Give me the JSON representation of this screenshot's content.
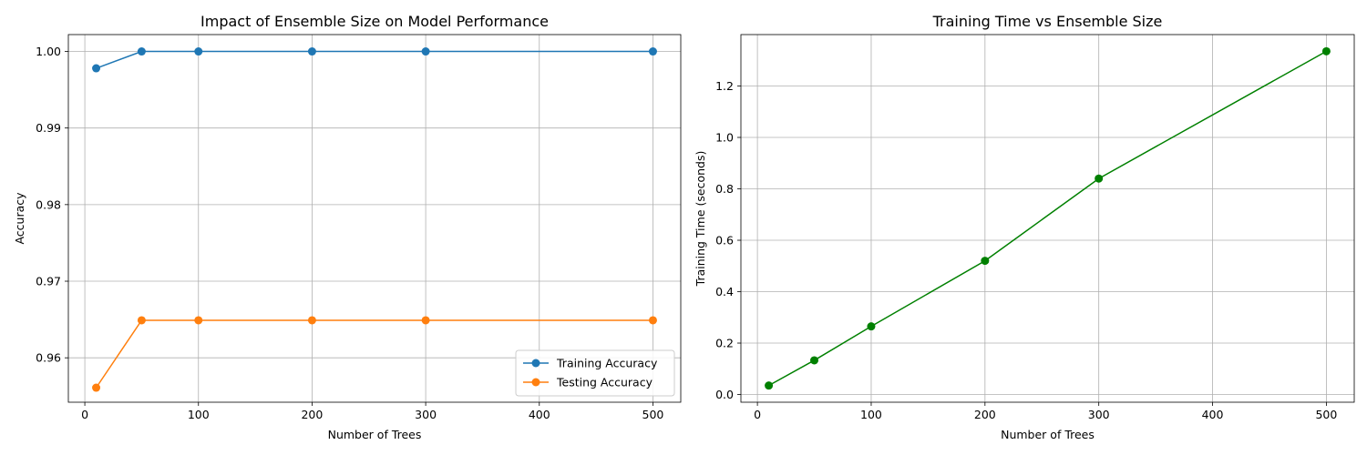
{
  "chart_data": [
    {
      "type": "line",
      "title": "Impact of Ensemble Size on Model Performance",
      "xlabel": "Number of Trees",
      "ylabel": "Accuracy",
      "x": [
        10,
        50,
        100,
        200,
        300,
        500
      ],
      "xlim": [
        -14.5,
        524.5
      ],
      "ylim": [
        0.9542,
        1.0022
      ],
      "xticks": [
        0,
        100,
        200,
        300,
        400,
        500
      ],
      "yticks": [
        0.96,
        0.97,
        0.98,
        0.99,
        1.0
      ],
      "ytick_labels": [
        "0.96",
        "0.97",
        "0.98",
        "0.99",
        "1.00"
      ],
      "grid": true,
      "legend": "lower-right",
      "series": [
        {
          "name": "Training Accuracy",
          "color": "#1f77b4",
          "marker": "circle",
          "values": [
            0.9978,
            1.0,
            1.0,
            1.0,
            1.0,
            1.0
          ]
        },
        {
          "name": "Testing Accuracy",
          "color": "#ff7f0e",
          "marker": "circle",
          "values": [
            0.9561,
            0.9649,
            0.9649,
            0.9649,
            0.9649,
            0.9649
          ]
        }
      ]
    },
    {
      "type": "line",
      "title": "Training Time vs Ensemble Size",
      "xlabel": "Number of Trees",
      "ylabel": "Training Time (seconds)",
      "x": [
        10,
        50,
        100,
        200,
        300,
        500
      ],
      "xlim": [
        -14.5,
        524.5
      ],
      "ylim": [
        -0.03,
        1.4
      ],
      "xticks": [
        0,
        100,
        200,
        300,
        400,
        500
      ],
      "yticks": [
        0.0,
        0.2,
        0.4,
        0.6,
        0.8,
        1.0,
        1.2
      ],
      "ytick_labels": [
        "0.0",
        "0.2",
        "0.4",
        "0.6",
        "0.8",
        "1.0",
        "1.2"
      ],
      "grid": true,
      "legend": "none",
      "series": [
        {
          "color": "#008000",
          "marker": "circle",
          "values": [
            0.035,
            0.133,
            0.265,
            0.52,
            0.84,
            1.335
          ]
        }
      ]
    }
  ]
}
